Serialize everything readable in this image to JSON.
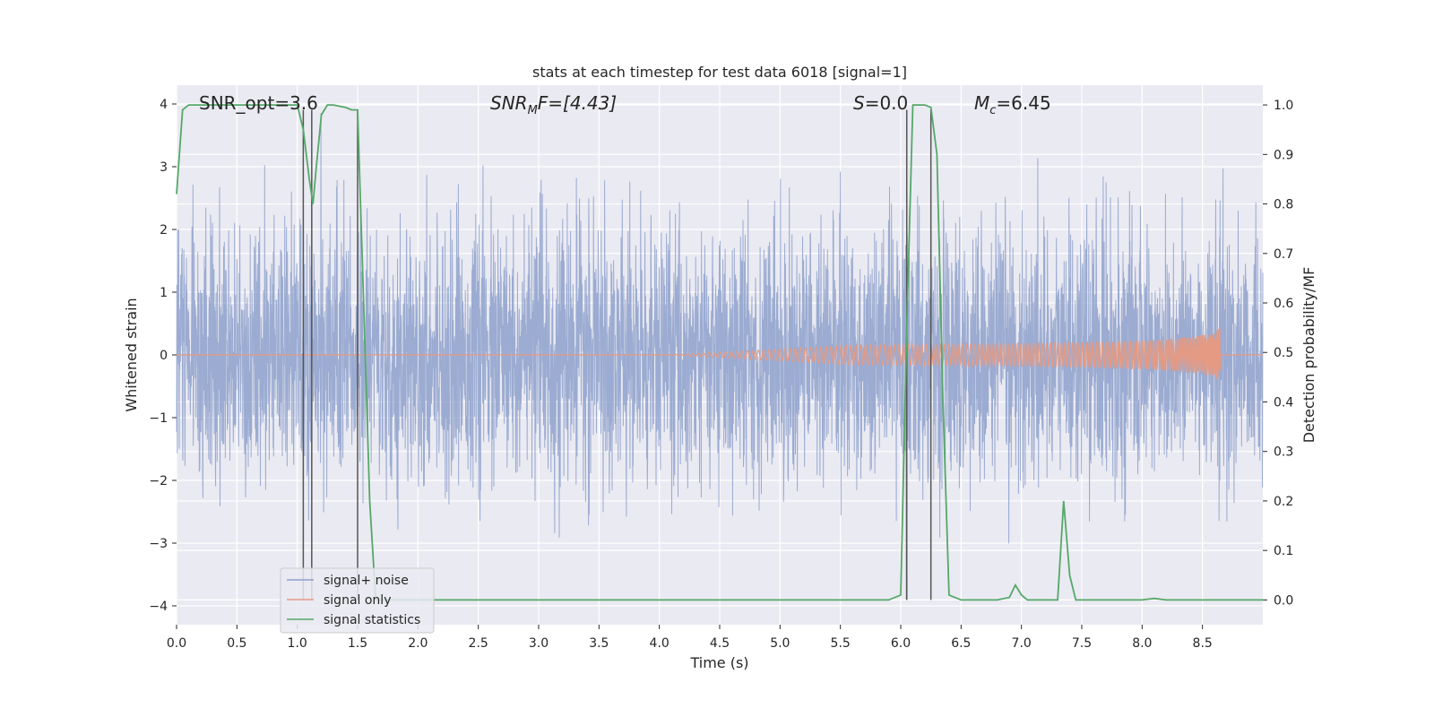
{
  "chart_data": {
    "type": "line",
    "title": "stats at each timestep for test data 6018 [signal=1]",
    "xlabel": "Time (s)",
    "ylabel": "Whitened strain",
    "ylabel_right": "Detection probability/MF",
    "xlim": [
      0,
      9.0
    ],
    "ylim": [
      -4.3,
      4.3
    ],
    "ylim_right": [
      -0.05,
      1.04
    ],
    "x_ticks": [
      "0.0",
      "0.5",
      "1.0",
      "1.5",
      "2.0",
      "2.5",
      "3.0",
      "3.5",
      "4.0",
      "4.5",
      "5.0",
      "5.5",
      "6.0",
      "6.5",
      "7.0",
      "7.5",
      "8.0",
      "8.5"
    ],
    "y_ticks": [
      "4",
      "3",
      "2",
      "1",
      "0",
      "−1",
      "−2",
      "−3",
      "−4"
    ],
    "y_right_ticks": [
      "1.0",
      "0.9",
      "0.8",
      "0.7",
      "0.6",
      "0.5",
      "0.4",
      "0.3",
      "0.2",
      "0.1",
      "0.0"
    ],
    "grid": true,
    "legend_position": "lower-left",
    "annotations": {
      "snr_opt": "SNR_opt=3.6",
      "snr_mf_prefix": "SNR",
      "snr_mf_sub": "M",
      "snr_mf_suffix": "F=[4.43]",
      "s_italic": "S",
      "s_value": "=0.0",
      "mc_italic": "M",
      "mc_sub": "c",
      "mc_value": "=6.45"
    },
    "series": [
      {
        "name": "signal+ noise",
        "color": "#8da0cb",
        "kind": "noise",
        "n_samples": 4500,
        "sigma": 1.0
      },
      {
        "name": "signal only",
        "color": "#e59a83",
        "kind": "chirp",
        "merger_time": 8.65,
        "peak_amplitude": 0.45
      },
      {
        "name": "signal statistics",
        "color": "#55a868",
        "axis": "right",
        "x": [
          0.0,
          0.05,
          0.1,
          0.2,
          0.3,
          0.5,
          0.7,
          0.9,
          1.0,
          1.05,
          1.1,
          1.13,
          1.16,
          1.2,
          1.25,
          1.3,
          1.4,
          1.45,
          1.5,
          1.55,
          1.6,
          1.65,
          1.7,
          2.0,
          3.0,
          4.0,
          5.0,
          5.9,
          6.0,
          6.05,
          6.1,
          6.15,
          6.2,
          6.25,
          6.3,
          6.35,
          6.4,
          6.5,
          6.8,
          6.9,
          6.95,
          7.0,
          7.05,
          7.1,
          7.2,
          7.3,
          7.35,
          7.4,
          7.45,
          7.5,
          8.0,
          8.1,
          8.2,
          8.5,
          9.0
        ],
        "y": [
          0.82,
          0.99,
          1.0,
          1.0,
          1.0,
          1.0,
          1.0,
          1.0,
          1.0,
          0.95,
          0.85,
          0.8,
          0.88,
          0.98,
          1.0,
          1.0,
          0.995,
          0.99,
          0.99,
          0.6,
          0.2,
          0.0,
          0.0,
          0.0,
          0.0,
          0.0,
          0.0,
          0.0,
          0.01,
          0.55,
          1.0,
          1.0,
          1.0,
          0.995,
          0.9,
          0.4,
          0.01,
          0.0,
          0.0,
          0.005,
          0.03,
          0.01,
          0.0,
          0.0,
          0.0,
          0.0,
          0.2,
          0.05,
          0.0,
          0.0,
          0.0,
          0.003,
          0.0,
          0.0,
          0.0
        ]
      }
    ],
    "vertical_lines": [
      1.05,
      1.12,
      1.5,
      6.05,
      6.25
    ],
    "vertical_lines_top": 0.99
  }
}
